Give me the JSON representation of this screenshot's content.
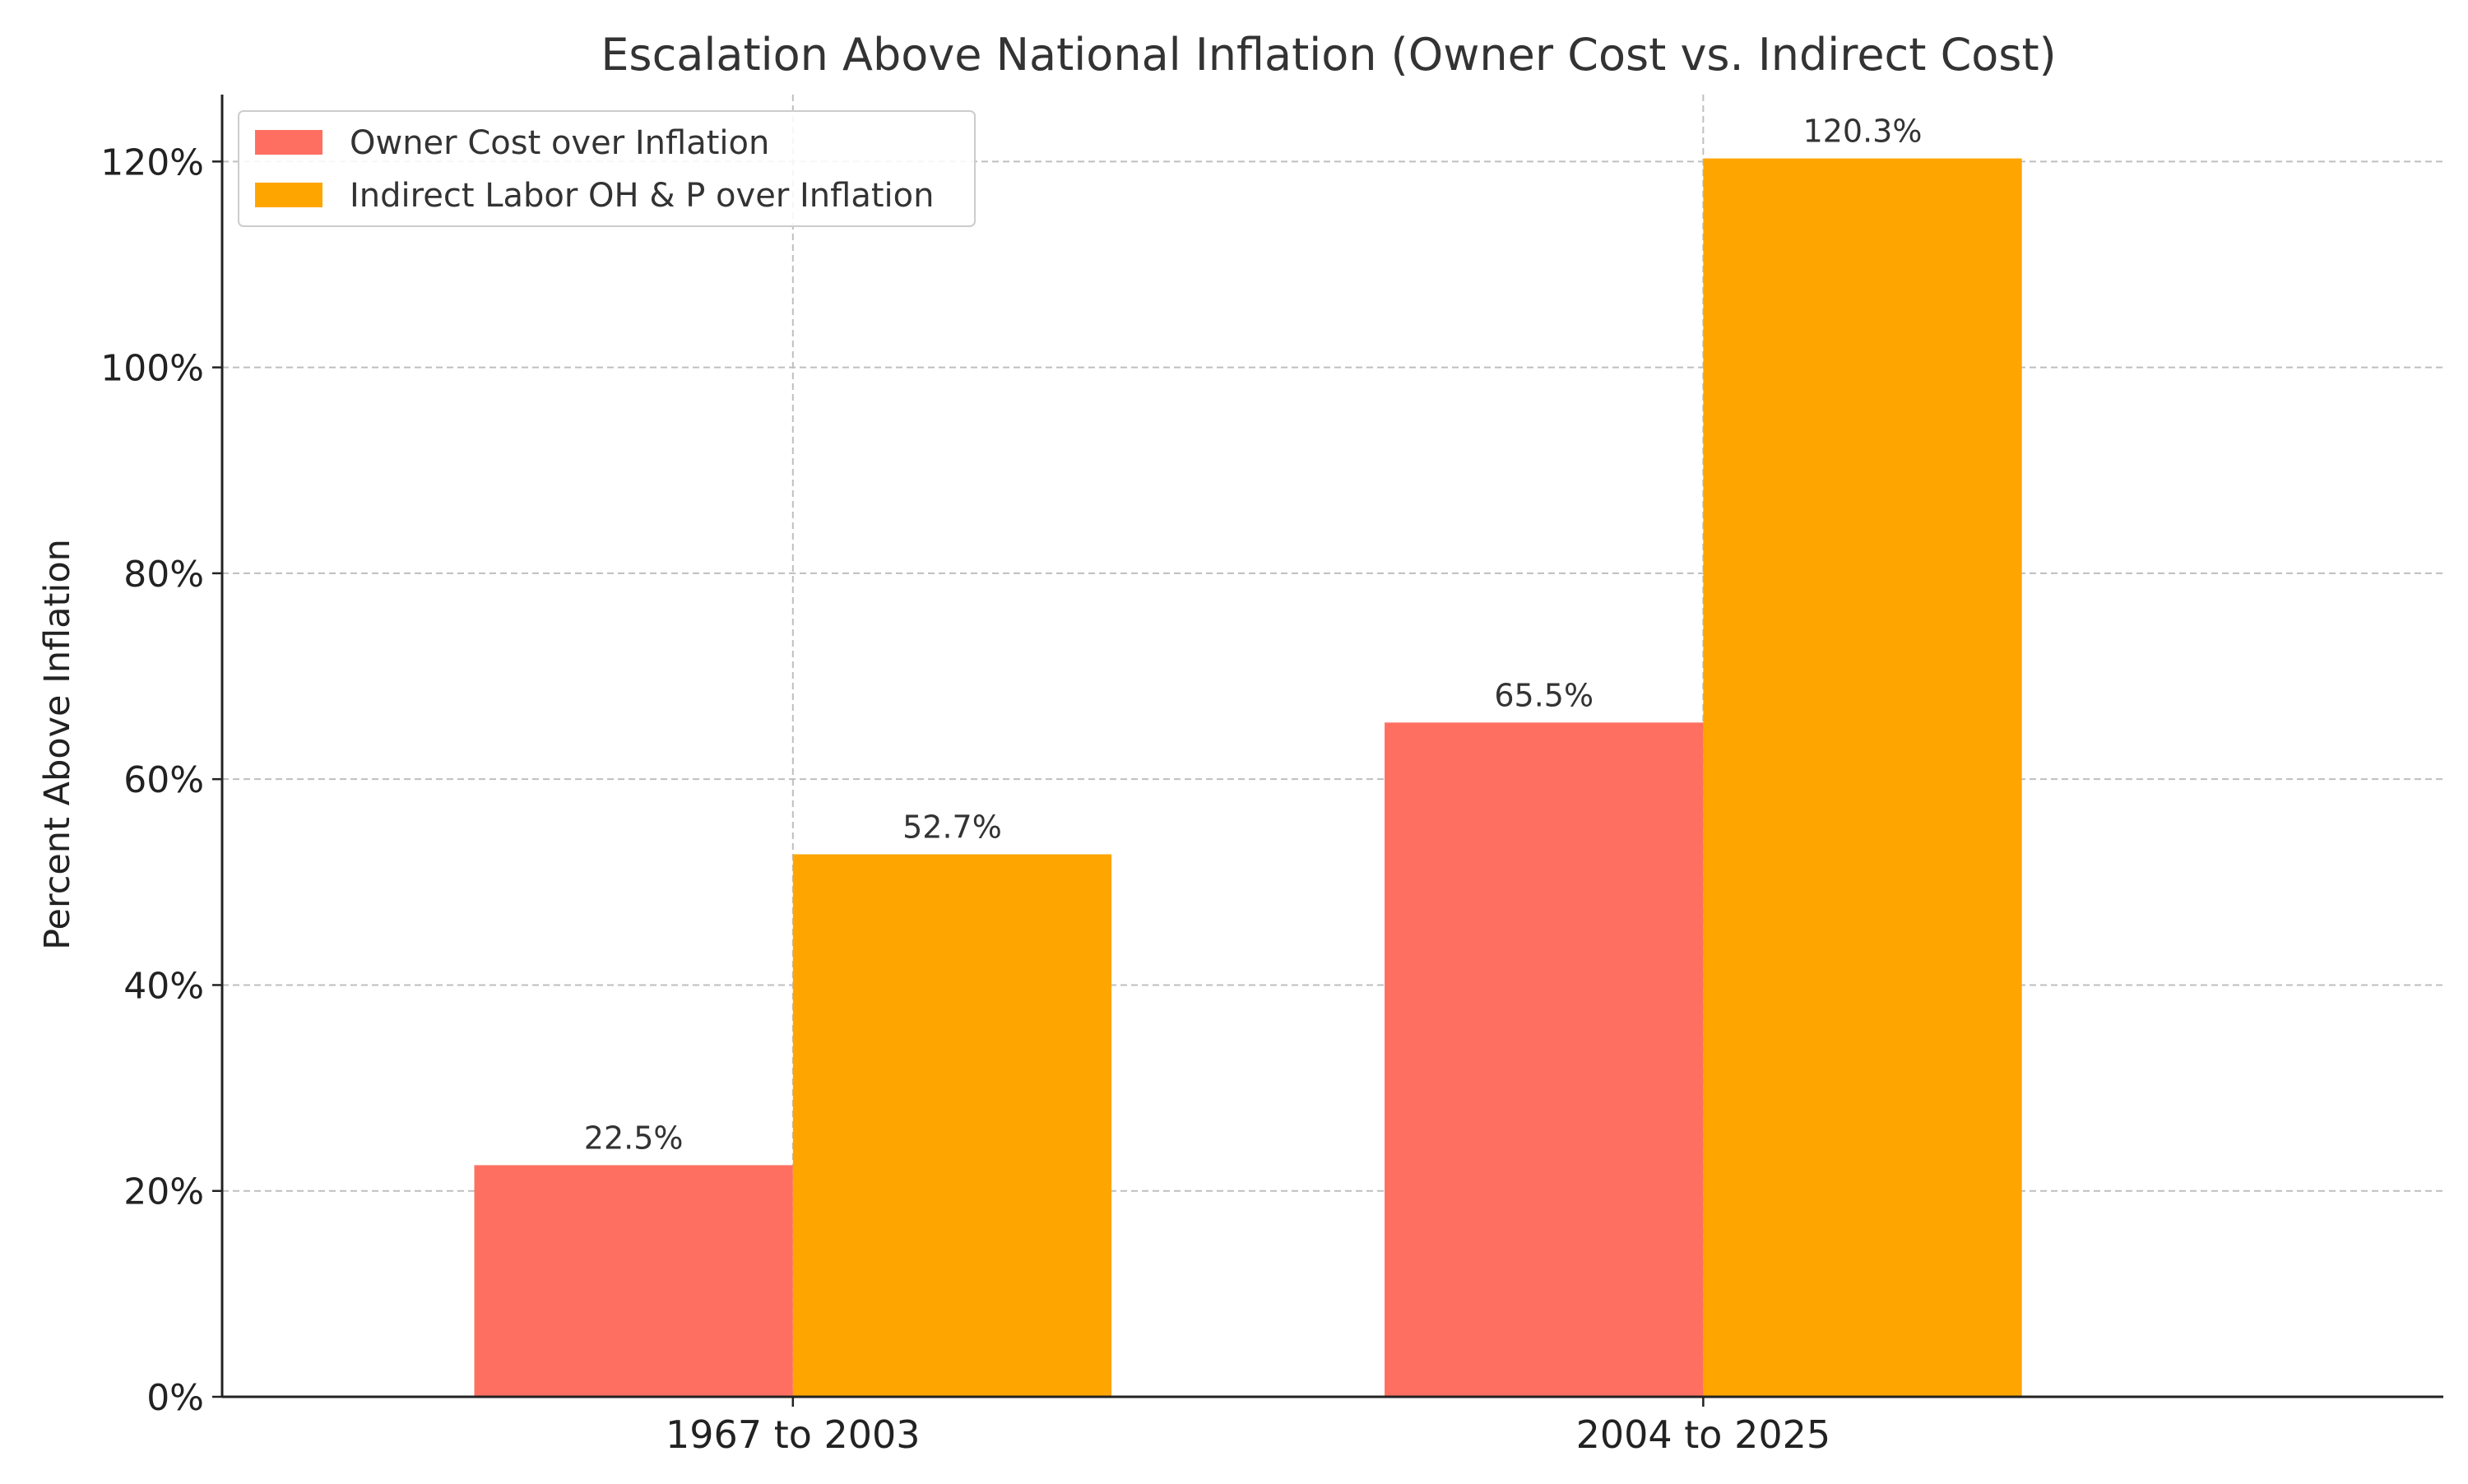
{
  "chart_data": {
    "type": "bar",
    "title": "Escalation Above National Inflation (Owner Cost vs. Indirect Cost)",
    "xlabel": "",
    "ylabel": "Percent Above Inflation",
    "categories": [
      "1967 to 2003",
      "2004 to 2025"
    ],
    "series": [
      {
        "name": "Owner Cost over Inflation",
        "color": "#ff6f61",
        "values": [
          22.5,
          65.5
        ],
        "labels": [
          "22.5%",
          "65.5%"
        ]
      },
      {
        "name": "Indirect Labor OH & P over Inflation",
        "color": "#ffa500",
        "values": [
          52.7,
          120.3
        ],
        "labels": [
          "52.7%",
          "120.3%"
        ]
      }
    ],
    "ylim": [
      0,
      126.5
    ],
    "yticks": [
      0,
      20,
      40,
      60,
      80,
      100,
      120
    ],
    "ytick_labels": [
      "0%",
      "20%",
      "40%",
      "60%",
      "80%",
      "100%",
      "120%"
    ],
    "grid": true,
    "legend_position": "top-left"
  }
}
